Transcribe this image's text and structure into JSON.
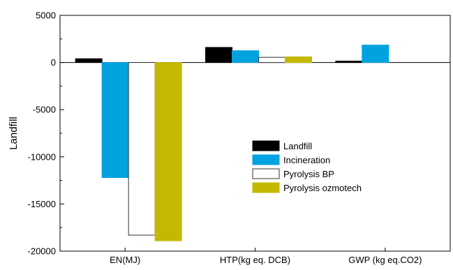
{
  "chart_data": {
    "type": "bar",
    "title": "",
    "xlabel": "",
    "ylabel": "Landfill",
    "ylim": [
      -20000,
      5000
    ],
    "yticks": [
      5000,
      0,
      -5000,
      -10000,
      -15000,
      -20000
    ],
    "ytick_labels": [
      "5000",
      "0",
      "-5000",
      "-10000",
      "-15000",
      "-20000"
    ],
    "categories": [
      "EN(MJ)",
      "HTP(kg eq. DCB)",
      "GWP (kg eq.CO2)"
    ],
    "series": [
      {
        "name": "Landfill",
        "color": "#000000",
        "values": [
          400,
          1600,
          150
        ]
      },
      {
        "name": "Incineration",
        "color": "#00a2e0",
        "values": [
          -12200,
          1250,
          1850
        ]
      },
      {
        "name": "Pyrolysis BP",
        "color": "#ffffff",
        "values": [
          -18300,
          550,
          0
        ]
      },
      {
        "name": "Pyrolysis ozmotech",
        "color": "#c4b800",
        "values": [
          -18900,
          600,
          0
        ]
      }
    ],
    "legend_position": "right-center",
    "grid": false
  }
}
